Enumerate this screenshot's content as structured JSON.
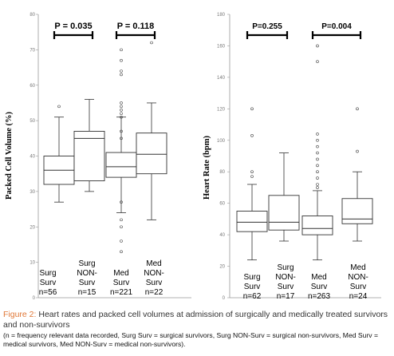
{
  "chart_data": [
    {
      "type": "boxplot",
      "ylabel": "Packed Cell Volume (%)",
      "ylim": [
        0,
        80
      ],
      "yticks": [
        0,
        10,
        20,
        30,
        40,
        50,
        60,
        70,
        80
      ],
      "grid": false,
      "categories": [
        {
          "lines": [
            "Surg",
            "Surv",
            "n=56"
          ]
        },
        {
          "lines": [
            "Surg",
            "NON-",
            "Surv",
            "n=15"
          ]
        },
        {
          "lines": [
            "Med",
            "Surv",
            "n=221"
          ]
        },
        {
          "lines": [
            "Med",
            "NON-",
            "Surv",
            "n=22"
          ]
        }
      ],
      "boxes": [
        {
          "whisker_low": 27,
          "q1": 32,
          "median": 36,
          "q3": 40,
          "whisker_high": 51,
          "outliers": [
            54
          ]
        },
        {
          "whisker_low": 30,
          "q1": 33,
          "median": 45,
          "q3": 47,
          "whisker_high": 56,
          "outliers": []
        },
        {
          "whisker_low": 24,
          "q1": 34,
          "median": 37,
          "q3": 41,
          "whisker_high": 51,
          "outliers": [
            55,
            54,
            53,
            52,
            51,
            47,
            45,
            27,
            22,
            20,
            16,
            13,
            63,
            64,
            67,
            70
          ]
        },
        {
          "whisker_low": 22,
          "q1": 35,
          "median": 40.5,
          "q3": 46.5,
          "whisker_high": 55,
          "outliers": [
            72
          ]
        }
      ],
      "comparisons": [
        {
          "between": [
            0,
            1
          ],
          "label": "P = 0.035"
        },
        {
          "between": [
            2,
            3
          ],
          "label": "P = 0.118"
        }
      ]
    },
    {
      "type": "boxplot",
      "ylabel": "Heart Rate (bpm)",
      "ylim": [
        0,
        180
      ],
      "yticks": [
        0,
        20,
        40,
        60,
        80,
        100,
        120,
        140,
        160,
        180
      ],
      "grid": false,
      "categories": [
        {
          "lines": [
            "Surg",
            "Surv",
            "n=62"
          ]
        },
        {
          "lines": [
            "Surg",
            "NON-",
            "Surv",
            "n=17"
          ]
        },
        {
          "lines": [
            "Med",
            "Surv",
            "n=263"
          ]
        },
        {
          "lines": [
            "Med",
            "NON-",
            "Surv",
            "n=24"
          ]
        }
      ],
      "boxes": [
        {
          "whisker_low": 24,
          "q1": 42,
          "median": 48,
          "q3": 55,
          "whisker_high": 72,
          "outliers": [
            120,
            103,
            80,
            77
          ]
        },
        {
          "whisker_low": 36,
          "q1": 43,
          "median": 48,
          "q3": 65,
          "whisker_high": 92,
          "outliers": []
        },
        {
          "whisker_low": 24,
          "q1": 40,
          "median": 44,
          "q3": 52,
          "whisker_high": 68,
          "outliers": [
            160,
            150,
            104,
            100,
            96,
            92,
            88,
            84,
            80,
            76,
            72,
            70
          ]
        },
        {
          "whisker_low": 36,
          "q1": 47,
          "median": 50,
          "q3": 63,
          "whisker_high": 80,
          "outliers": [
            120,
            93
          ]
        }
      ],
      "comparisons": [
        {
          "between": [
            0,
            1
          ],
          "label": "P=0.255"
        },
        {
          "between": [
            2,
            3
          ],
          "label": "P=0.004"
        }
      ]
    }
  ],
  "caption": {
    "lead": "Figure 2:",
    "text": " Heart rates and packed cell volumes at admission of surgically and medically treated survivors and non-survivors",
    "note": "(n = frequency relevant data recorded, Surg Surv = surgical survivors, Surg NON-Surv = surgical non-survivors, Med Surv = medical survivors, Med NON-Surv = medical non-survivors)."
  }
}
